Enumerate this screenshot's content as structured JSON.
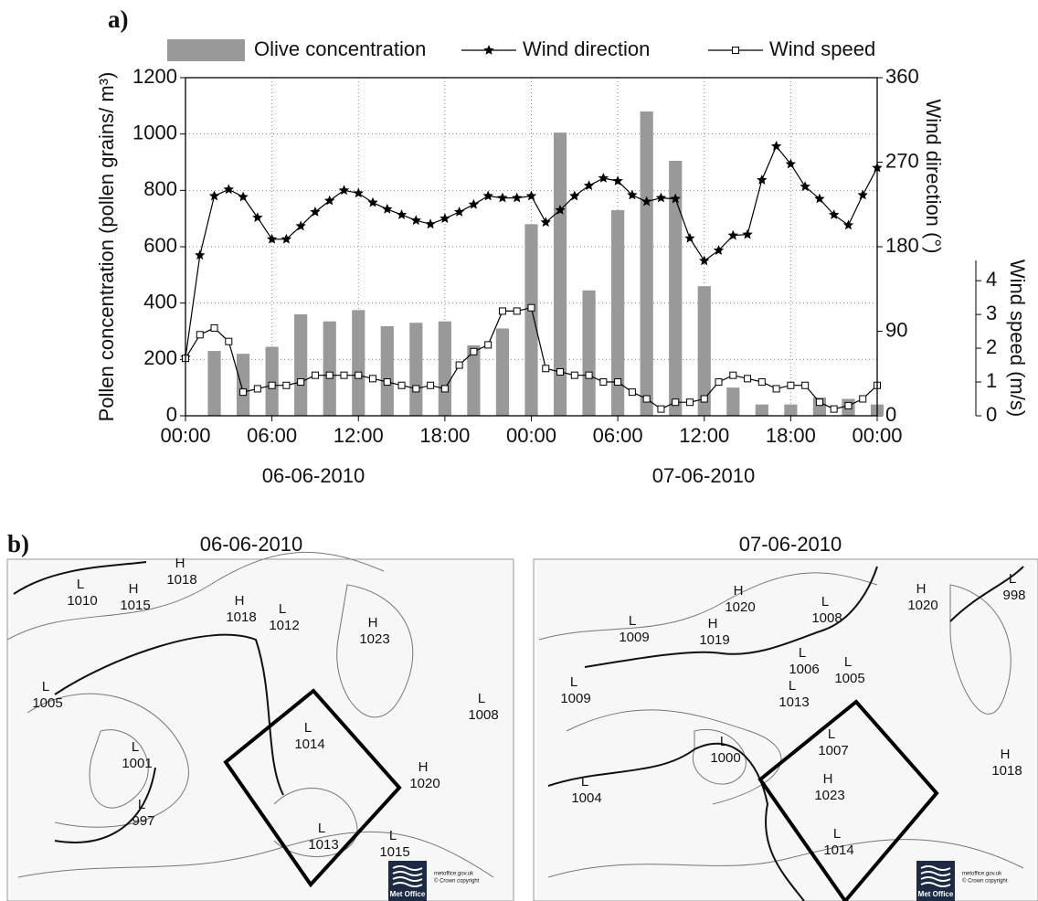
{
  "chart_data": {
    "type": "combo",
    "panel_label": "a)",
    "x": [
      0,
      1,
      2,
      3,
      4,
      5,
      6,
      7,
      8,
      9,
      10,
      11,
      12,
      13,
      14,
      15,
      16,
      17,
      18,
      19,
      20,
      21,
      22,
      23,
      24,
      25,
      26,
      27,
      28,
      29,
      30,
      31,
      32,
      33,
      34,
      35,
      36,
      37,
      38,
      39,
      40,
      41,
      42,
      43,
      44,
      45,
      46,
      47,
      48
    ],
    "xlim": [
      0,
      48
    ],
    "xticks": [
      {
        "value": 0,
        "label": "00:00"
      },
      {
        "value": 6,
        "label": "06:00"
      },
      {
        "value": 12,
        "label": "12:00"
      },
      {
        "value": 18,
        "label": "18:00"
      },
      {
        "value": 24,
        "label": "00:00"
      },
      {
        "value": 30,
        "label": "06:00"
      },
      {
        "value": 36,
        "label": "12:00"
      },
      {
        "value": 42,
        "label": "18:00"
      },
      {
        "value": 48,
        "label": "00:00"
      }
    ],
    "date_labels": [
      "06-06-2010",
      "07-06-2010"
    ],
    "ylabel": "Pollen concentration (pollen grains/ m³)",
    "ylim": [
      0,
      1200
    ],
    "yticks": [
      0,
      200,
      400,
      600,
      800,
      1000,
      1200
    ],
    "y2label": "Wind direction (°)",
    "y2lim": [
      0,
      360
    ],
    "y2ticks": [
      0,
      90,
      180,
      270,
      360
    ],
    "y3label": "Wind speed (m/s)",
    "y3lim": [
      0,
      4.6
    ],
    "y3ticks": [
      0,
      1,
      2,
      3,
      4
    ],
    "grid": true,
    "series": [
      {
        "name": "Olive concentration",
        "kind": "bar",
        "color": "#999999",
        "values": [
          null,
          null,
          230,
          null,
          220,
          null,
          245,
          null,
          360,
          null,
          335,
          null,
          375,
          null,
          318,
          null,
          330,
          null,
          335,
          null,
          250,
          null,
          310,
          null,
          680,
          null,
          1005,
          null,
          445,
          null,
          730,
          null,
          1080,
          null,
          905,
          null,
          460,
          null,
          100,
          null,
          40,
          null,
          40,
          null,
          65,
          null,
          60,
          null,
          40
        ]
      },
      {
        "name": "Wind direction",
        "kind": "line",
        "marker": "star",
        "color": "#000000",
        "axis": "y2",
        "values": [
          62,
          171,
          234,
          241,
          233,
          211,
          188,
          188,
          202,
          217,
          229,
          240,
          237,
          227,
          220,
          214,
          208,
          204,
          210,
          217,
          225,
          234,
          232,
          232,
          234,
          206,
          219,
          234,
          245,
          253,
          250,
          235,
          228,
          232,
          231,
          189,
          165,
          176,
          192,
          193,
          251,
          287,
          268,
          244,
          231,
          214,
          203,
          235,
          264
        ]
      },
      {
        "name": "Wind speed",
        "kind": "line",
        "marker": "square",
        "color": "#000000",
        "axis": "y3",
        "values": [
          1.7,
          2.4,
          2.6,
          2.2,
          0.7,
          0.8,
          0.9,
          0.9,
          1.0,
          1.2,
          1.2,
          1.2,
          1.2,
          1.1,
          1.0,
          0.9,
          0.8,
          0.9,
          0.8,
          1.5,
          1.9,
          2.1,
          3.1,
          3.1,
          3.2,
          1.4,
          1.3,
          1.2,
          1.2,
          1.0,
          1.0,
          0.7,
          0.5,
          0.2,
          0.4,
          0.4,
          0.5,
          1.0,
          1.2,
          1.1,
          1.0,
          0.8,
          0.9,
          0.9,
          0.4,
          0.2,
          0.3,
          0.5,
          0.9
        ]
      }
    ]
  },
  "panel_b": {
    "label": "b)",
    "maps": [
      {
        "date": "06-06-2010",
        "logo": "Met Office",
        "credit": [
          "metoffice.gov.uk",
          "© Crown copyright"
        ],
        "centers": [
          {
            "kind": "L",
            "pressure": 1010
          },
          {
            "kind": "H",
            "pressure": 1015
          },
          {
            "kind": "H",
            "pressure": 1018
          },
          {
            "kind": "H",
            "pressure": 1018
          },
          {
            "kind": "L",
            "pressure": 1012
          },
          {
            "kind": "H",
            "pressure": 1023
          },
          {
            "kind": "L",
            "pressure": 1008
          },
          {
            "kind": "L",
            "pressure": 1005
          },
          {
            "kind": "L",
            "pressure": 1001
          },
          {
            "kind": "L",
            "pressure": 997
          },
          {
            "kind": "L",
            "pressure": 1014
          },
          {
            "kind": "H",
            "pressure": 1020
          },
          {
            "kind": "L",
            "pressure": 1013
          },
          {
            "kind": "L",
            "pressure": 1015
          }
        ]
      },
      {
        "date": "07-06-2010",
        "logo": "Met Office",
        "credit": [
          "metoffice.gov.uk",
          "© Crown copyright"
        ],
        "centers": [
          {
            "kind": "H",
            "pressure": 1020
          },
          {
            "kind": "L",
            "pressure": 998
          },
          {
            "kind": "H",
            "pressure": 1020
          },
          {
            "kind": "L",
            "pressure": 1008
          },
          {
            "kind": "H",
            "pressure": 1019
          },
          {
            "kind": "L",
            "pressure": 1009
          },
          {
            "kind": "L",
            "pressure": 1006
          },
          {
            "kind": "L",
            "pressure": 1013
          },
          {
            "kind": "L",
            "pressure": 1005
          },
          {
            "kind": "L",
            "pressure": 1009
          },
          {
            "kind": "L",
            "pressure": 1000
          },
          {
            "kind": "L",
            "pressure": 1007
          },
          {
            "kind": "H",
            "pressure": 1018
          },
          {
            "kind": "L",
            "pressure": 1004
          },
          {
            "kind": "H",
            "pressure": 1023
          },
          {
            "kind": "L",
            "pressure": 1014
          }
        ]
      }
    ]
  }
}
